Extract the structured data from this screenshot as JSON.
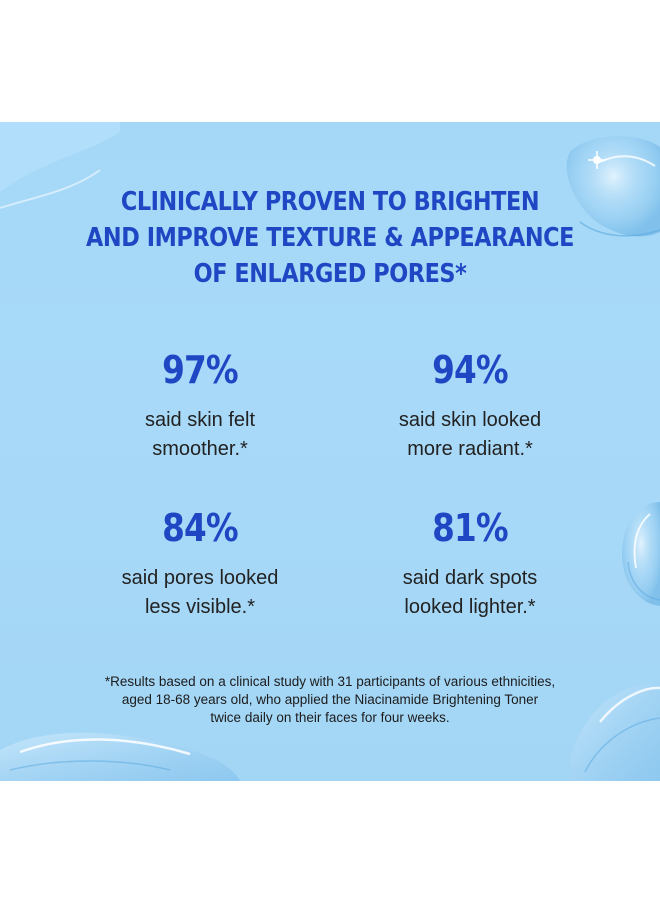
{
  "headline": {
    "line1": "CLINICALLY PROVEN TO BRIGHTEN",
    "line2": "AND IMPROVE TEXTURE & APPEARANCE",
    "line3": "OF ENLARGED PORES*"
  },
  "stats": [
    {
      "value": "97%",
      "line1": "said skin felt",
      "line2": "smoother.*"
    },
    {
      "value": "94%",
      "line1": "said skin looked",
      "line2": "more radiant.*"
    },
    {
      "value": "84%",
      "line1": "said pores looked",
      "line2": "less visible.*"
    },
    {
      "value": "81%",
      "line1": "said dark spots",
      "line2": "looked lighter.*"
    }
  ],
  "footnote": {
    "line1": "*Results based on a clinical study with 31 participants of various ethnicities,",
    "line2": "aged 18-68 years old, who applied the Niacinamide Brightening Toner",
    "line3": "twice daily on their faces for four weeks."
  },
  "colors": {
    "background": "#a5d8f7",
    "headline": "#1f47c4",
    "body_text": "#222222"
  },
  "decorations": [
    "water-droplet-top-right",
    "water-splash-right",
    "water-splash-bottom-left",
    "water-splash-bottom-right",
    "sparkle"
  ]
}
